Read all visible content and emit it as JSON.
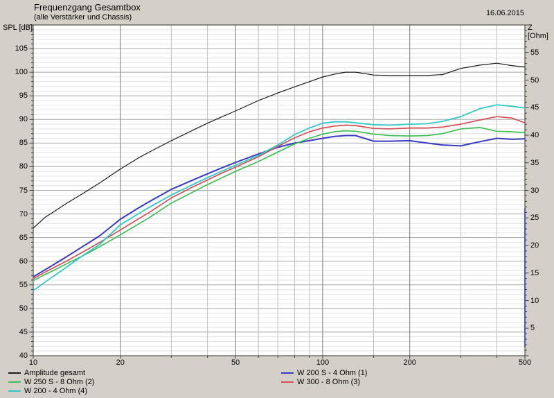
{
  "header": {
    "title": "Frequenzgang Gesamtbox",
    "subtitle": "(alle Verstärker und Chassis)",
    "date": "16.06.2015"
  },
  "chart_data": {
    "type": "line",
    "title": "Frequenzgang Gesamtbox",
    "subtitle": "(alle Verstärker und Chassis)",
    "x_axis": {
      "scale": "log",
      "range": [
        10,
        500
      ],
      "ticks": [
        10,
        20,
        50,
        100,
        200,
        500
      ],
      "gridlines_minor": [
        30,
        40,
        60,
        70,
        80,
        90,
        150,
        300,
        400
      ],
      "gridlines_major": [
        20,
        50,
        100,
        200
      ]
    },
    "left_axis": {
      "title": "SPL [dB]",
      "range": [
        40,
        110
      ],
      "ticks": [
        105,
        100,
        95,
        90,
        85,
        80,
        75,
        70,
        65,
        60,
        55,
        50,
        45,
        40
      ],
      "minor_step": 1,
      "major_step": 5
    },
    "right_axis": {
      "title": "Z [Ohm]",
      "range": [
        0,
        60
      ],
      "ticks": [
        55,
        50,
        45,
        40,
        35,
        30,
        25,
        20,
        15,
        10,
        5
      ],
      "minor_step": 1,
      "major_step": 5
    },
    "x": [
      10,
      11,
      12,
      13,
      15,
      17,
      20,
      23,
      25,
      30,
      35,
      40,
      45,
      50,
      60,
      70,
      80,
      90,
      100,
      110,
      120,
      130,
      150,
      170,
      200,
      230,
      260,
      300,
      350,
      400,
      450,
      500
    ],
    "series": [
      {
        "name": "Amplitude gesamt",
        "color": "#1a1a1a",
        "axis": "left",
        "values": [
          67.0,
          69.3,
          70.8,
          72.2,
          74.5,
          76.6,
          79.5,
          81.8,
          83.0,
          85.5,
          87.5,
          89.2,
          90.6,
          91.8,
          94.0,
          95.6,
          96.9,
          98.0,
          99.0,
          99.6,
          100.0,
          100.0,
          99.4,
          99.3,
          99.3,
          99.3,
          99.5,
          100.8,
          101.5,
          101.9,
          101.4,
          101.1
        ]
      },
      {
        "name": "W 200 S - 4 Ohm (1)",
        "color": "#3939c0",
        "axis": "left",
        "values": [
          56.7,
          58.2,
          59.6,
          60.9,
          63.3,
          65.4,
          68.9,
          71.2,
          72.5,
          75.2,
          77.0,
          78.5,
          79.8,
          80.9,
          82.7,
          84.1,
          85.0,
          85.5,
          86.0,
          86.4,
          86.6,
          86.6,
          85.4,
          85.4,
          85.5,
          85.0,
          84.6,
          84.4,
          85.3,
          86.0,
          85.8,
          85.9
        ]
      },
      {
        "name": "W 250 S - 8 Ohm (2)",
        "color": "#3fbf57",
        "axis": "left",
        "values": [
          55.9,
          57.2,
          58.3,
          59.4,
          61.3,
          63.1,
          65.6,
          67.8,
          69.1,
          72.3,
          74.4,
          76.2,
          77.7,
          79.0,
          81.1,
          83.1,
          84.8,
          86.0,
          86.9,
          87.4,
          87.6,
          87.5,
          86.9,
          86.6,
          86.5,
          86.6,
          87.0,
          88.0,
          88.3,
          87.5,
          87.4,
          87.2
        ]
      },
      {
        "name": "W 300 - 8 Ohm (3)",
        "color": "#d14f55",
        "axis": "left",
        "values": [
          56.3,
          57.7,
          58.9,
          60.0,
          62.1,
          64.0,
          66.6,
          68.9,
          70.2,
          73.4,
          75.5,
          77.2,
          78.7,
          79.9,
          82.1,
          84.3,
          86.1,
          87.4,
          88.2,
          88.6,
          88.8,
          88.7,
          88.1,
          88.0,
          88.2,
          88.2,
          88.4,
          89.0,
          89.9,
          90.6,
          90.3,
          89.3
        ]
      },
      {
        "name": "W 200 - 4 Ohm (4)",
        "color": "#2fc7c7",
        "axis": "left",
        "values": [
          53.8,
          55.6,
          57.2,
          58.7,
          61.4,
          63.6,
          67.7,
          70.0,
          71.3,
          74.0,
          76.0,
          77.7,
          79.1,
          80.3,
          82.4,
          84.6,
          86.8,
          88.2,
          89.2,
          89.5,
          89.5,
          89.3,
          88.9,
          88.8,
          89.0,
          89.1,
          89.6,
          90.6,
          92.3,
          93.1,
          92.8,
          92.4
        ]
      }
    ],
    "annotations": {
      "right_border_segment": {
        "color": "#3030cf",
        "axis": "right",
        "z_from": 26.8,
        "z_to": 1.6
      }
    }
  },
  "legend": {
    "left_column": [
      {
        "label": "Amplitude gesamt",
        "color": "#1a1a1a"
      },
      {
        "label": "W 250 S - 8 Ohm (2)",
        "color": "#3fbf57"
      },
      {
        "label": "W 200 - 4 Ohm (4)",
        "color": "#2fc7c7"
      }
    ],
    "right_column": [
      {
        "label": "W 200 S - 4 Ohm (1)",
        "color": "#3939c0"
      },
      {
        "label": "W 300 - 8 Ohm (3)",
        "color": "#d14f55"
      }
    ]
  }
}
